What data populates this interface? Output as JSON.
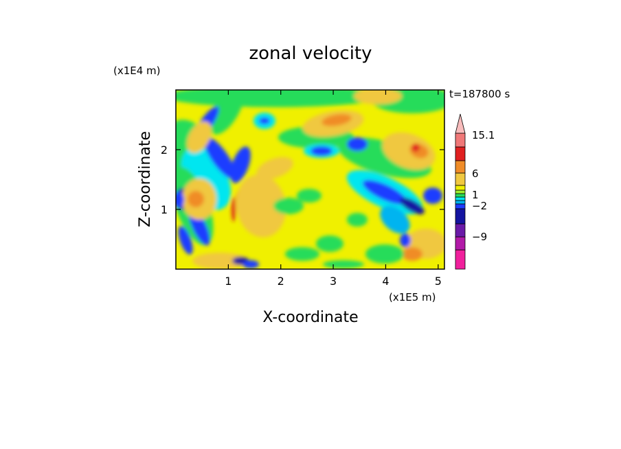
{
  "chart_data": {
    "type": "heatmap",
    "title": "zonal velocity",
    "xlabel": "X-coordinate",
    "ylabel": "Z-coordinate",
    "x_unit": "(x1E5 m)",
    "y_unit": "(x1E4 m)",
    "time_label": "t=187800 s",
    "xlim": [
      0,
      5.12
    ],
    "ylim": [
      0,
      3.0
    ],
    "x_ticks": [
      1,
      2,
      3,
      4,
      5
    ],
    "y_ticks": [
      1,
      2
    ],
    "colorbar": {
      "levels": [
        -15,
        -12,
        -9,
        -6,
        -3,
        -2,
        -1,
        0,
        1,
        2,
        3,
        6,
        9,
        12,
        15.1
      ],
      "labels": [
        {
          "value": 15.1,
          "text": "15.1"
        },
        {
          "value": 6,
          "text": "6"
        },
        {
          "value": 1,
          "text": "1"
        },
        {
          "value": -2,
          "text": "−2"
        },
        {
          "value": -9,
          "text": "−9"
        }
      ],
      "colors": [
        "#f0209c",
        "#b21aa8",
        "#6a1aa8",
        "#1414a0",
        "#1e3cff",
        "#00b4f0",
        "#00e6f0",
        "#28dc5a",
        "#a0f030",
        "#f0f000",
        "#f0c840",
        "#f08c28",
        "#e02020",
        "#f07878",
        "#f8bcbc"
      ],
      "extend": "max-arrow"
    }
  }
}
